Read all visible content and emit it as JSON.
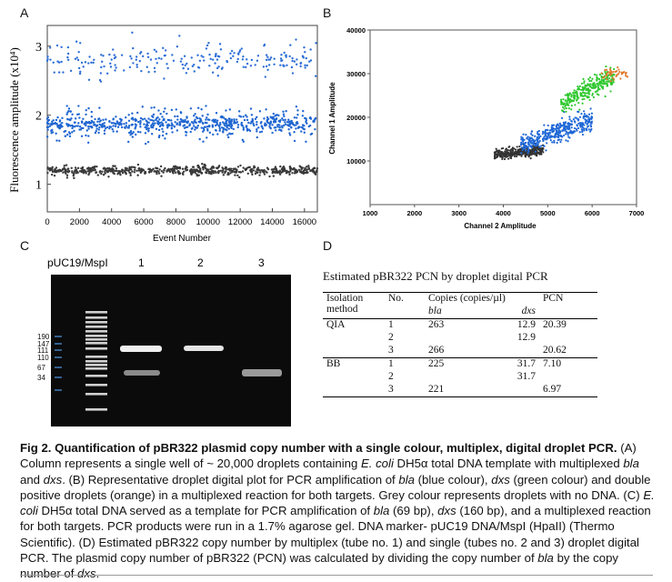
{
  "panels": {
    "A": {
      "letter": "A",
      "ylabel": "Fluorescence amplitude (x10⁴)",
      "xlabel": "Event Number",
      "xticks": [
        "0",
        "2000",
        "4000",
        "6000",
        "8000",
        "10000",
        "12000",
        "14000",
        "16000"
      ],
      "yticks": [
        "1",
        "2",
        "3"
      ]
    },
    "B": {
      "letter": "B",
      "ylabel": "Channel 1 Amplitude",
      "xlabel": "Channel 2 Amplitude",
      "xticks": [
        "1000",
        "2000",
        "3000",
        "4000",
        "5000",
        "6000",
        "7000"
      ],
      "yticks": [
        "10000",
        "20000",
        "30000",
        "40000"
      ]
    },
    "C": {
      "letter": "C",
      "lane_labels": [
        "pUC19/MspI",
        "1",
        "2",
        "3"
      ],
      "marker_sizes": [
        "190",
        "147",
        "111",
        "110",
        "67",
        "34"
      ]
    },
    "D": {
      "letter": "D",
      "table_title": "Estimated pBR322 PCN by droplet digital PCR",
      "headers": {
        "method": "Isolation method",
        "no": "No.",
        "copies": "Copies (copies/µl)",
        "pcn": "PCN",
        "bla": "bla",
        "dxs": "dxs"
      },
      "rows": [
        {
          "method": "QIA",
          "no": "1",
          "bla": "263",
          "dxs": "12.9",
          "pcn": "20.39"
        },
        {
          "method": "",
          "no": "2",
          "bla": "",
          "dxs": "12.9",
          "pcn": ""
        },
        {
          "method": "",
          "no": "3",
          "bla": "266",
          "dxs": "",
          "pcn": "20.62"
        },
        {
          "method": "BB",
          "no": "1",
          "bla": "225",
          "dxs": "31.7",
          "pcn": "7.10"
        },
        {
          "method": "",
          "no": "2",
          "bla": "",
          "dxs": "31.7",
          "pcn": ""
        },
        {
          "method": "",
          "no": "3",
          "bla": "221",
          "dxs": "",
          "pcn": "6.97"
        }
      ]
    }
  },
  "chart_data": [
    {
      "type": "scatter",
      "title": "",
      "xlabel": "Event Number",
      "ylabel": "Fluorescence amplitude (x10⁴)",
      "xlim": [
        0,
        16800
      ],
      "ylim": [
        0.6,
        3.3
      ],
      "series": [
        {
          "color": "#2f6fd6",
          "band_center": 2.8,
          "band_spread": 0.12,
          "count": 220
        },
        {
          "color": "#1f66d1",
          "band_center": 1.87,
          "band_spread": 0.07,
          "count": 700
        },
        {
          "color": "#3a3a3a",
          "band_center": 1.2,
          "band_spread": 0.035,
          "count": 600
        }
      ]
    },
    {
      "type": "scatter",
      "title": "",
      "xlabel": "Channel 2 Amplitude",
      "ylabel": "Channel 1 Amplitude",
      "xlim": [
        1000,
        7000
      ],
      "ylim": [
        0,
        40000
      ],
      "series": [
        {
          "color": "#333333",
          "x_range": [
            3800,
            4900
          ],
          "y_center": 12000,
          "count": 350
        },
        {
          "color": "#1e67d6",
          "x_range": [
            4400,
            6000
          ],
          "y_center": 17500,
          "count": 380
        },
        {
          "color": "#2fc82f",
          "x_range": [
            5300,
            6500
          ],
          "y_center": 27500,
          "count": 280
        },
        {
          "color": "#e0782a",
          "x_range": [
            6200,
            6800
          ],
          "y_center": 30000,
          "count": 40
        }
      ]
    }
  ],
  "caption": {
    "label": "Fig 2. Quantification of pBR322 plasmid copy number with a single colour, multiplex, digital droplet PCR.",
    "p1": " (A) Column represents a single well of ~ 20,000 droplets containing ",
    "ecoli": "E. coli",
    "p2": " DH5α total DNA template with multiplexed ",
    "bla": "bla",
    "p3": " and ",
    "dxs": "dxs",
    "p4": ". (B) Representative droplet digital plot for PCR amplification of ",
    "p5": " (blue colour), ",
    "p6": " (green colour) and double positive droplets (orange) in a multiplexed reaction for both targets. Grey colour represents droplets with no DNA. (C) ",
    "p7": " DH5α total DNA served as a template for PCR amplification of ",
    "p8": " (69 bp), ",
    "p9": " (160 bp), and a multiplexed reaction for both targets. PCR products were run in a 1.7% agarose gel. DNA marker- pUC19 DNA/MspI (HpaII) (Thermo Scientific). (D) Estimated pBR322 copy number by multiplex (tube no. 1) and single (tubes no. 2 and 3) droplet digital PCR. The plasmid copy number of pBR322 (PCN) was calculated by dividing the copy number of ",
    "p10": " by the copy number of ",
    "p11": "."
  }
}
